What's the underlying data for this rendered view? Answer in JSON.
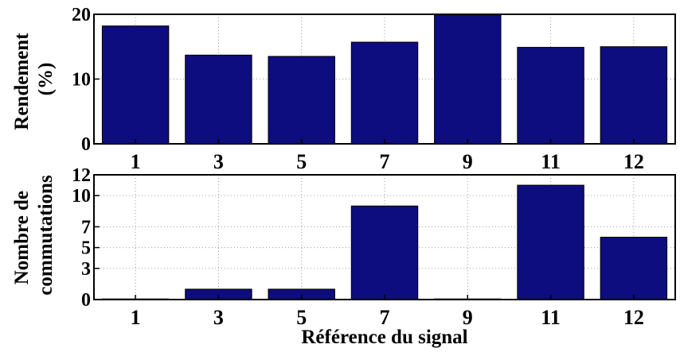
{
  "chart_data": [
    {
      "type": "bar",
      "categories": [
        "1",
        "3",
        "5",
        "7",
        "9",
        "11",
        "12"
      ],
      "values": [
        18.2,
        13.7,
        13.5,
        15.7,
        19.9,
        14.9,
        15.0
      ],
      "title": "",
      "xlabel": "",
      "ylabel_lines": [
        "Rendement",
        "(%)"
      ],
      "ylim": [
        0,
        20
      ],
      "yticks": [
        0,
        10,
        20
      ],
      "grid": true,
      "bar_color": "#0d0d7f"
    },
    {
      "type": "bar",
      "categories": [
        "1",
        "3",
        "5",
        "7",
        "9",
        "11",
        "12"
      ],
      "values": [
        0,
        1,
        1,
        9,
        0,
        11,
        6
      ],
      "title": "",
      "xlabel": "Référence du signal",
      "ylabel_lines": [
        "Nombre de",
        "commutations"
      ],
      "ylim": [
        0,
        12
      ],
      "yticks": [
        0,
        3,
        5,
        7,
        10,
        12
      ],
      "grid": true,
      "bar_color": "#0d0d7f"
    }
  ]
}
